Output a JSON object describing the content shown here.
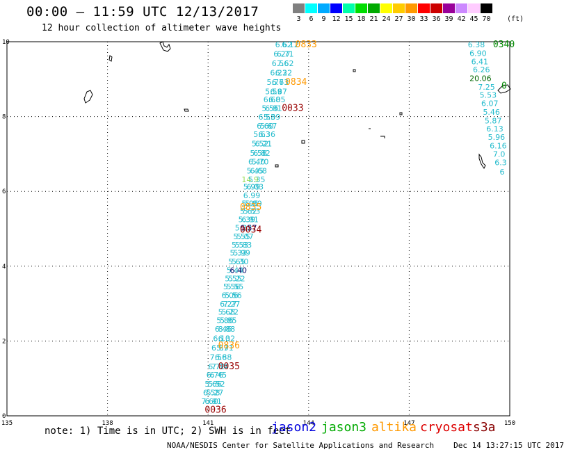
{
  "title": "00:00 – 11:59 UTC 12/13/2017",
  "subtitle": "12 hour collection of altimeter wave heights",
  "legend": {
    "colors": [
      "#808080",
      "#00ffff",
      "#00aaff",
      "#0000ff",
      "#00ffaa",
      "#00dd00",
      "#00aa00",
      "#ffff00",
      "#ffcc00",
      "#ff9900",
      "#ff0000",
      "#cc0000",
      "#990099",
      "#cc88ff",
      "#ffccff",
      "#000000"
    ],
    "labels": [
      "3",
      "6",
      "9",
      "12",
      "15",
      "18",
      "21",
      "24",
      "27",
      "30",
      "33",
      "36",
      "39",
      "42",
      "45",
      "70"
    ],
    "unit": "(ft)"
  },
  "axes": {
    "x_ticks": [
      "135",
      "138",
      "141",
      "144",
      "147",
      "150"
    ],
    "y_ticks": [
      "0",
      "2",
      "4",
      "6",
      "8",
      "10"
    ],
    "x_range": [
      135,
      150
    ],
    "y_range": [
      0,
      10
    ],
    "grid": true
  },
  "time_labels": [
    {
      "text": "0833",
      "lon": 143.6,
      "lat": 9.85,
      "color": "#ff9900"
    },
    {
      "text": "0834",
      "lon": 143.3,
      "lat": 8.85,
      "color": "#ff9900"
    },
    {
      "text": "0033",
      "lon": 143.2,
      "lat": 8.15,
      "color": "#990000"
    },
    {
      "text": "0835",
      "lon": 141.95,
      "lat": 5.5,
      "color": "#ff9900"
    },
    {
      "text": "0034",
      "lon": 141.95,
      "lat": 4.9,
      "color": "#990000"
    },
    {
      "text": "0836",
      "lon": 141.3,
      "lat": 1.8,
      "color": "#ff9900"
    },
    {
      "text": "0035",
      "lon": 141.3,
      "lat": 1.25,
      "color": "#990000"
    },
    {
      "text": "0036",
      "lon": 140.9,
      "lat": 0.08,
      "color": "#990000"
    },
    {
      "text": "0340",
      "lon": 149.5,
      "lat": 9.85,
      "color": "#008800"
    }
  ],
  "wave_heights": [
    {
      "text": "6.62",
      "lon": 143.0,
      "lat": 9.85
    },
    {
      "text": "6.12",
      "lon": 143.2,
      "lat": 9.85
    },
    {
      "text": "6.27",
      "lon": 142.95,
      "lat": 9.6
    },
    {
      "text": "6.71",
      "lon": 143.05,
      "lat": 9.6
    },
    {
      "text": "6.56",
      "lon": 142.9,
      "lat": 9.35
    },
    {
      "text": "7.62",
      "lon": 143.05,
      "lat": 9.35
    },
    {
      "text": "6.23",
      "lon": 142.85,
      "lat": 9.1
    },
    {
      "text": "6.22",
      "lon": 143.0,
      "lat": 9.1
    },
    {
      "text": "5.77",
      "lon": 142.75,
      "lat": 8.85
    },
    {
      "text": "6.63",
      "lon": 142.9,
      "lat": 8.85
    },
    {
      "text": "5.59",
      "lon": 142.7,
      "lat": 8.6
    },
    {
      "text": "6.87",
      "lon": 142.85,
      "lat": 8.6
    },
    {
      "text": "6.68",
      "lon": 142.65,
      "lat": 8.38
    },
    {
      "text": "6.05",
      "lon": 142.8,
      "lat": 8.38
    },
    {
      "text": "5.56",
      "lon": 142.6,
      "lat": 8.15
    },
    {
      "text": "6.81",
      "lon": 142.7,
      "lat": 8.15
    },
    {
      "text": "6.53",
      "lon": 142.5,
      "lat": 7.92
    },
    {
      "text": "5.89",
      "lon": 142.65,
      "lat": 7.92
    },
    {
      "text": "6.60",
      "lon": 142.45,
      "lat": 7.68
    },
    {
      "text": "5.67",
      "lon": 142.55,
      "lat": 7.68
    },
    {
      "text": "5.63",
      "lon": 142.35,
      "lat": 7.45
    },
    {
      "text": "6.36",
      "lon": 142.5,
      "lat": 7.45
    },
    {
      "text": "5.52",
      "lon": 142.3,
      "lat": 7.2
    },
    {
      "text": "6.21",
      "lon": 142.4,
      "lat": 7.2
    },
    {
      "text": "5.58",
      "lon": 142.25,
      "lat": 6.95
    },
    {
      "text": "6.82",
      "lon": 142.35,
      "lat": 6.95
    },
    {
      "text": "6.40",
      "lon": 142.2,
      "lat": 6.72
    },
    {
      "text": "5.70",
      "lon": 142.3,
      "lat": 6.72
    },
    {
      "text": "5.45",
      "lon": 142.15,
      "lat": 6.48
    },
    {
      "text": "6.68",
      "lon": 142.25,
      "lat": 6.48
    },
    {
      "text": "14.9",
      "lon": 142.0,
      "lat": 6.25,
      "color": "#99dd55"
    },
    {
      "text": "5.35",
      "lon": 142.2,
      "lat": 6.25
    },
    {
      "text": "5.99",
      "lon": 142.05,
      "lat": 6.05
    },
    {
      "text": "6.03",
      "lon": 142.15,
      "lat": 6.05
    },
    {
      "text": "6.99",
      "lon": 142.05,
      "lat": 5.82
    },
    {
      "text": "5.95",
      "lon": 142.0,
      "lat": 5.6
    },
    {
      "text": "5.89",
      "lon": 142.1,
      "lat": 5.6
    },
    {
      "text": "5.62",
      "lon": 141.95,
      "lat": 5.4
    },
    {
      "text": "5.53",
      "lon": 142.05,
      "lat": 5.4
    },
    {
      "text": "5.39",
      "lon": 141.9,
      "lat": 5.18
    },
    {
      "text": "6.91",
      "lon": 142.0,
      "lat": 5.18
    },
    {
      "text": "5.32",
      "lon": 141.8,
      "lat": 4.95
    },
    {
      "text": "6.57",
      "lon": 141.95,
      "lat": 4.95,
      "color": "#000066"
    },
    {
      "text": "5.55",
      "lon": 141.75,
      "lat": 4.72
    },
    {
      "text": "5.07",
      "lon": 141.85,
      "lat": 4.72
    },
    {
      "text": "5.53",
      "lon": 141.7,
      "lat": 4.5
    },
    {
      "text": "5.83",
      "lon": 141.8,
      "lat": 4.5
    },
    {
      "text": "5.33",
      "lon": 141.65,
      "lat": 4.28
    },
    {
      "text": "5.99",
      "lon": 141.75,
      "lat": 4.28
    },
    {
      "text": "5.65",
      "lon": 141.6,
      "lat": 4.05
    },
    {
      "text": "5.30",
      "lon": 141.7,
      "lat": 4.05
    },
    {
      "text": "5.44",
      "lon": 141.55,
      "lat": 3.82
    },
    {
      "text": "6.40",
      "lon": 141.65,
      "lat": 3.82,
      "color": "#000066"
    },
    {
      "text": "5.55",
      "lon": 141.5,
      "lat": 3.6
    },
    {
      "text": "5.22",
      "lon": 141.6,
      "lat": 3.6
    },
    {
      "text": "5.56",
      "lon": 141.45,
      "lat": 3.38
    },
    {
      "text": "5.55",
      "lon": 141.55,
      "lat": 3.38
    },
    {
      "text": "6.06",
      "lon": 141.4,
      "lat": 3.15
    },
    {
      "text": "5.56",
      "lon": 141.5,
      "lat": 3.15
    },
    {
      "text": "6.27",
      "lon": 141.35,
      "lat": 2.92
    },
    {
      "text": "7.27",
      "lon": 141.45,
      "lat": 2.92
    },
    {
      "text": "5.68",
      "lon": 141.3,
      "lat": 2.7
    },
    {
      "text": "5.22",
      "lon": 141.4,
      "lat": 2.7
    },
    {
      "text": "5.86",
      "lon": 141.25,
      "lat": 2.48
    },
    {
      "text": "5.85",
      "lon": 141.35,
      "lat": 2.48
    },
    {
      "text": "6.46",
      "lon": 141.2,
      "lat": 2.25
    },
    {
      "text": "8.88",
      "lon": 141.3,
      "lat": 2.25
    },
    {
      "text": "6.10",
      "lon": 141.15,
      "lat": 2.0
    },
    {
      "text": "6.32",
      "lon": 141.3,
      "lat": 2.0
    },
    {
      "text": "6.67",
      "lon": 141.1,
      "lat": 1.75
    },
    {
      "text": "5.91",
      "lon": 141.25,
      "lat": 1.75
    },
    {
      "text": "7.56",
      "lon": 141.05,
      "lat": 1.5
    },
    {
      "text": "6.88",
      "lon": 141.2,
      "lat": 1.5
    },
    {
      "text": "6.72",
      "lon": 141.0,
      "lat": 1.25
    },
    {
      "text": "7.14",
      "lon": 141.1,
      "lat": 1.25
    },
    {
      "text": "6.76",
      "lon": 140.95,
      "lat": 1.02
    },
    {
      "text": "6.45",
      "lon": 141.05,
      "lat": 1.02
    },
    {
      "text": "5.66",
      "lon": 140.9,
      "lat": 0.78
    },
    {
      "text": "5.52",
      "lon": 141.0,
      "lat": 0.78
    },
    {
      "text": "6.58",
      "lon": 140.85,
      "lat": 0.55
    },
    {
      "text": "5.27",
      "lon": 140.95,
      "lat": 0.55
    },
    {
      "text": "7.60",
      "lon": 140.8,
      "lat": 0.32
    },
    {
      "text": "6.91",
      "lon": 140.9,
      "lat": 0.32
    },
    {
      "text": "6.38",
      "lon": 148.75,
      "lat": 9.85
    },
    {
      "text": "6.90",
      "lon": 148.8,
      "lat": 9.62
    },
    {
      "text": "6.41",
      "lon": 148.85,
      "lat": 9.4
    },
    {
      "text": "6.26",
      "lon": 148.9,
      "lat": 9.18
    },
    {
      "text": "20.06",
      "lon": 148.8,
      "lat": 8.95,
      "color": "#006600"
    },
    {
      "text": "7.25",
      "lon": 149.05,
      "lat": 8.72
    },
    {
      "text": "5.53",
      "lon": 149.1,
      "lat": 8.5
    },
    {
      "text": "6.07",
      "lon": 149.15,
      "lat": 8.28
    },
    {
      "text": "5.46",
      "lon": 149.2,
      "lat": 8.05
    },
    {
      "text": "5.87",
      "lon": 149.25,
      "lat": 7.82
    },
    {
      "text": "6.13",
      "lon": 149.3,
      "lat": 7.6
    },
    {
      "text": "5.96",
      "lon": 149.35,
      "lat": 7.38
    },
    {
      "text": "6.16",
      "lon": 149.4,
      "lat": 7.15
    },
    {
      "text": "7.0",
      "lon": 149.5,
      "lat": 6.92
    },
    {
      "text": "6.3",
      "lon": 149.55,
      "lat": 6.7
    },
    {
      "text": "6",
      "lon": 149.7,
      "lat": 6.45
    }
  ],
  "partial_pass": {
    "text": "0",
    "lon": 149.75,
    "lat": 8.75,
    "color": "#008800"
  },
  "note": "note: 1) Time is in UTC; 2) SWH is in feet",
  "missions": [
    {
      "name": "jason2",
      "color": "#0000dd"
    },
    {
      "name": "jason3",
      "color": "#00aa00"
    },
    {
      "name": "altika",
      "color": "#ff9900"
    },
    {
      "name": "cryosat",
      "color": "#dd0000"
    },
    {
      "name": "s3a",
      "color": "#880000"
    }
  ],
  "footer": {
    "center": "NOAA/NESDIS Center for Satellite Applications and Research",
    "timestamp": "Dec 14 13:27:15 UTC 2017"
  }
}
